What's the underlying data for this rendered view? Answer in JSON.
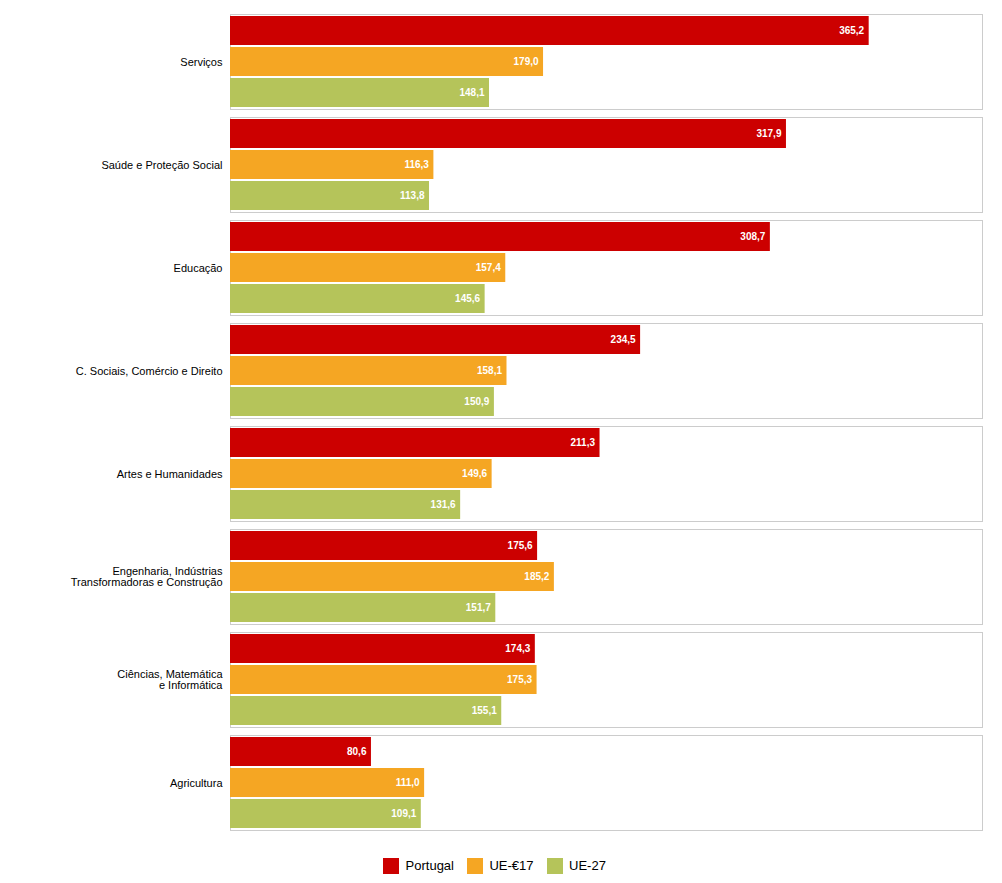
{
  "chart_data": {
    "type": "bar",
    "orientation": "horizontal",
    "categories": [
      "Serviços",
      "Saúde e Proteção Social",
      "Educação",
      "C. Sociais, Comércio e Direito",
      "Artes e Humanidades",
      "Engenharia, Indústrias\nTransformadoras e Construção",
      "Ciências, Matemática\ne Informática",
      "Agricultura"
    ],
    "series": [
      {
        "name": "Portugal",
        "color": "#cc0000",
        "values": [
          365.2,
          317.9,
          308.7,
          234.5,
          211.3,
          175.6,
          174.3,
          80.6
        ],
        "value_labels": [
          "365,2",
          "317,9",
          "308,7",
          "234,5",
          "211,3",
          "175,6",
          "174,3",
          "80,6"
        ]
      },
      {
        "name": "UE-€17",
        "color": "#f5a623",
        "values": [
          179.0,
          116.3,
          157.4,
          158.1,
          149.6,
          185.2,
          175.3,
          111.0
        ],
        "value_labels": [
          "179,0",
          "116,3",
          "157,4",
          "158,1",
          "149,6",
          "185,2",
          "175,3",
          "111,0"
        ]
      },
      {
        "name": "UE-27",
        "color": "#b5c45a",
        "values": [
          148.1,
          113.8,
          145.6,
          150.9,
          131.6,
          151.7,
          155.1,
          109.1
        ],
        "value_labels": [
          "148,1",
          "113,8",
          "145,6",
          "150,9",
          "131,6",
          "151,7",
          "155,1",
          "109,1"
        ]
      }
    ],
    "xlim": [
      0,
      430
    ],
    "tick_labels": "y",
    "grid": false,
    "legend": "bottom",
    "data_labels": true
  }
}
